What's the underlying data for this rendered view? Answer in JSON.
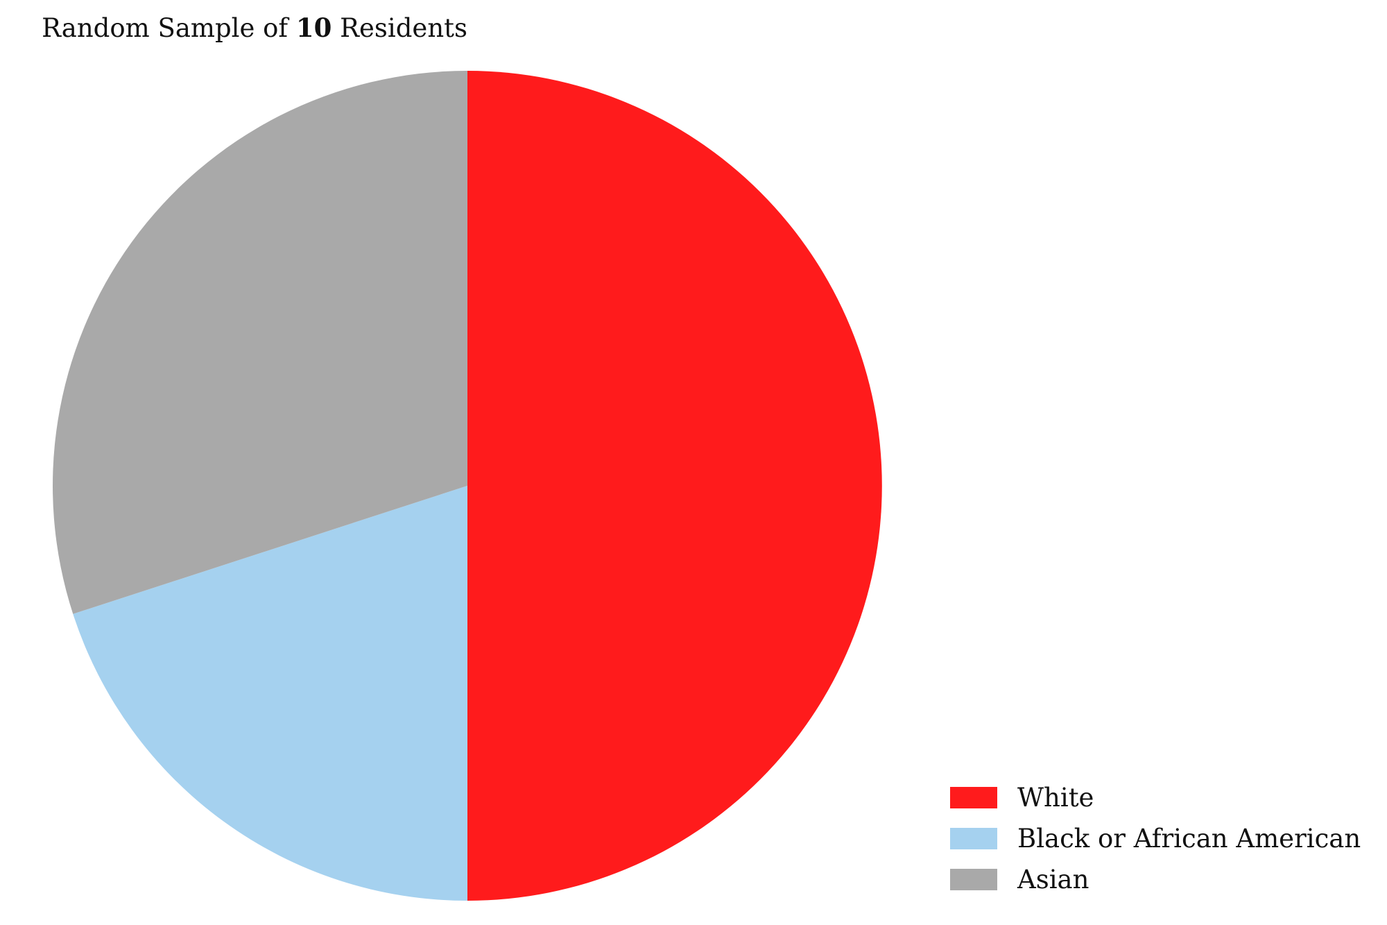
{
  "chart_data": {
    "type": "pie",
    "title": {
      "prefix": "Random Sample of ",
      "emphasis": "10",
      "suffix": " Residents"
    },
    "slices": [
      {
        "label": "White",
        "value": 5,
        "color": "#ff1b1c"
      },
      {
        "label": "Black or African American",
        "value": 2,
        "color": "#a5d1ef"
      },
      {
        "label": "Asian",
        "value": 3,
        "color": "#a9a9a9"
      }
    ],
    "start_angle": "12 o'clock",
    "direction": "clockwise",
    "legend_position": "bottom-right"
  }
}
